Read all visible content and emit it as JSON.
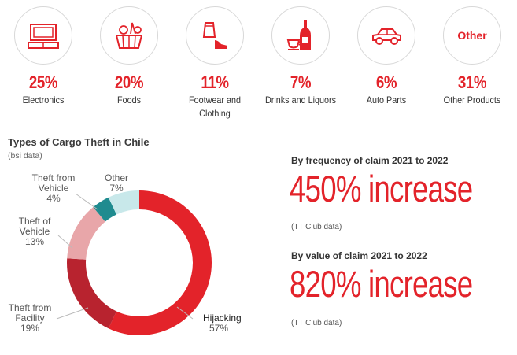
{
  "categories": [
    {
      "pct": "25%",
      "label": "Electronics",
      "icon": "tv-icon"
    },
    {
      "pct": "20%",
      "label": "Foods",
      "icon": "food-basket-icon"
    },
    {
      "pct": "11%",
      "label": "Footwear and\nClothing",
      "icon": "clothing-icon"
    },
    {
      "pct": "7%",
      "label": "Drinks and Liquors",
      "icon": "drinks-icon"
    },
    {
      "pct": "6%",
      "label": "Auto Parts",
      "icon": "car-icon"
    },
    {
      "pct": "31%",
      "label": "Other Products",
      "icon": "other-icon",
      "icon_text": "Other"
    }
  ],
  "chart_data": {
    "type": "pie",
    "title": "Types of Cargo Theft in Chile",
    "subtitle": "(bsi data)",
    "donut": true,
    "slices": [
      {
        "name": "Hijacking",
        "value": 57,
        "label": "57%",
        "color": "#e3232a"
      },
      {
        "name": "Theft from Facility",
        "value": 19,
        "label": "19%",
        "color": "#b8232f"
      },
      {
        "name": "Theft of Vehicle",
        "value": 13,
        "label": "13%",
        "color": "#e8a6a9"
      },
      {
        "name": "Theft from Vehicle",
        "value": 4,
        "label": "4%",
        "color": "#1f8b8f"
      },
      {
        "name": "Other",
        "value": 7,
        "label": "7%",
        "color": "#c8e8ea"
      }
    ]
  },
  "stats": [
    {
      "heading": "By frequency of claim 2021 to 2022",
      "value": "450% increase",
      "source": "(TT Club data)"
    },
    {
      "heading": "By value of claim 2021 to 2022",
      "value": "820% increase",
      "source": "(TT Club data)"
    }
  ],
  "colors": {
    "accent": "#e3232a",
    "text": "#333333"
  }
}
